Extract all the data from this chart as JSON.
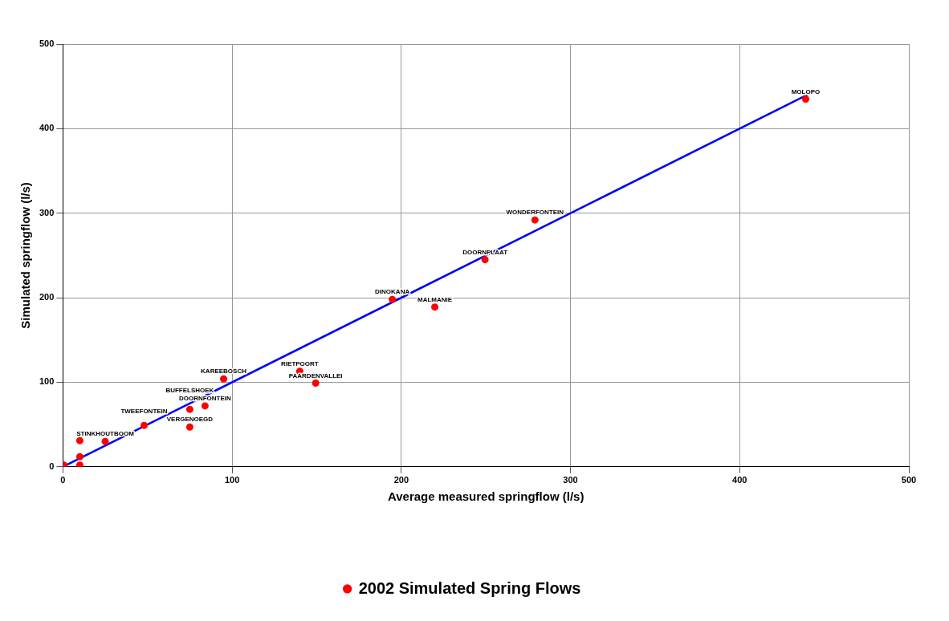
{
  "chart_data": {
    "type": "scatter",
    "xlabel": "Average measured springflow (l/s)",
    "ylabel": "Simulated springflow (l/s)",
    "x": [
      439,
      279,
      249.5,
      194.7,
      219.8,
      140,
      149.4,
      95,
      84,
      75,
      75,
      48,
      10,
      25,
      10,
      0.5,
      10
    ],
    "series": [
      {
        "name": "2002 Simulated Spring Flows",
        "color": "#ff0000",
        "values": [
          435,
          292,
          245,
          198,
          189,
          113,
          99,
          104,
          72,
          68,
          47,
          49,
          31,
          30,
          12,
          2,
          2
        ]
      },
      {
        "type": "line",
        "color": "#0000ff",
        "x": [
          0,
          440
        ],
        "values": [
          0,
          440
        ],
        "marker": "none"
      }
    ],
    "annotations": [
      {
        "text": "MOLOPO",
        "x": 439,
        "y": 435
      },
      {
        "text": "WONDERFONTEIN",
        "x": 279,
        "y": 292
      },
      {
        "text": "DOORNPLAAT",
        "x": 249.5,
        "y": 245
      },
      {
        "text": "DINOKANA",
        "x": 194.7,
        "y": 198
      },
      {
        "text": "MALMANIE",
        "x": 219.8,
        "y": 189
      },
      {
        "text": "RIETPOORT",
        "x": 140,
        "y": 113
      },
      {
        "text": "PAARDENVALLEI",
        "x": 149.4,
        "y": 99
      },
      {
        "text": "KAREEBOSCH",
        "x": 95,
        "y": 104
      },
      {
        "text": "DOORNFONTEIN",
        "x": 84,
        "y": 72
      },
      {
        "text": "BUFFELSHOEK",
        "x": 75,
        "y": 68
      },
      {
        "text": "VERGENOEGD",
        "x": 75,
        "y": 47
      },
      {
        "text": "TWEEFONTEIN",
        "x": 48,
        "y": 49
      },
      {
        "text": "STINKHOUTBOOM",
        "x": 25,
        "y": 30
      }
    ],
    "xlim": [
      0,
      500
    ],
    "xticks": [
      0,
      100,
      200,
      300,
      400,
      500
    ],
    "ylim": [
      0,
      500
    ],
    "yticks": [
      0,
      100,
      200,
      300,
      400,
      500
    ],
    "grid": true,
    "legend": "bottom",
    "marker": "circle"
  }
}
